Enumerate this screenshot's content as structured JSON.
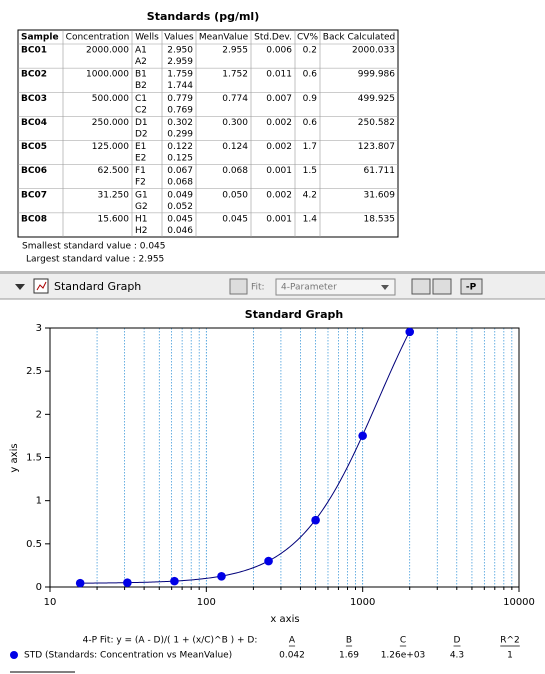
{
  "table": {
    "title": "Standards (pg/ml)",
    "columns": [
      "Sample",
      "Concentration",
      "Wells",
      "Values",
      "MeanValue",
      "Std.Dev.",
      "CV%",
      "Back Calculated"
    ],
    "rows": [
      {
        "sample": "BC01",
        "concentration": "2000.000",
        "wells": [
          "A1",
          "A2"
        ],
        "values": [
          "2.950",
          "2.959"
        ],
        "mean": "2.955",
        "sd": "0.006",
        "cv": "0.2",
        "back": "2000.033"
      },
      {
        "sample": "BC02",
        "concentration": "1000.000",
        "wells": [
          "B1",
          "B2"
        ],
        "values": [
          "1.759",
          "1.744"
        ],
        "mean": "1.752",
        "sd": "0.011",
        "cv": "0.6",
        "back": "999.986"
      },
      {
        "sample": "BC03",
        "concentration": "500.000",
        "wells": [
          "C1",
          "C2"
        ],
        "values": [
          "0.779",
          "0.769"
        ],
        "mean": "0.774",
        "sd": "0.007",
        "cv": "0.9",
        "back": "499.925"
      },
      {
        "sample": "BC04",
        "concentration": "250.000",
        "wells": [
          "D1",
          "D2"
        ],
        "values": [
          "0.302",
          "0.299"
        ],
        "mean": "0.300",
        "sd": "0.002",
        "cv": "0.6",
        "back": "250.582"
      },
      {
        "sample": "BC05",
        "concentration": "125.000",
        "wells": [
          "E1",
          "E2"
        ],
        "values": [
          "0.122",
          "0.125"
        ],
        "mean": "0.124",
        "sd": "0.002",
        "cv": "1.7",
        "back": "123.807"
      },
      {
        "sample": "BC06",
        "concentration": "62.500",
        "wells": [
          "F1",
          "F2"
        ],
        "values": [
          "0.067",
          "0.068"
        ],
        "mean": "0.068",
        "sd": "0.001",
        "cv": "1.5",
        "back": "61.711"
      },
      {
        "sample": "BC07",
        "concentration": "31.250",
        "wells": [
          "G1",
          "G2"
        ],
        "values": [
          "0.049",
          "0.052"
        ],
        "mean": "0.050",
        "sd": "0.002",
        "cv": "4.2",
        "back": "31.609"
      },
      {
        "sample": "BC08",
        "concentration": "15.600",
        "wells": [
          "H1",
          "H2"
        ],
        "values": [
          "0.045",
          "0.046"
        ],
        "mean": "0.045",
        "sd": "0.001",
        "cv": "1.4",
        "back": "18.535"
      }
    ]
  },
  "summary": [
    "Smallest standard value : 0.045",
    "Largest standard value : 2.955"
  ],
  "toolbar": {
    "title": "Standard Graph",
    "fit_label": "Fit:",
    "fit_method": "4-Parameter",
    "button": "-P"
  },
  "chart_data": {
    "type": "scatter",
    "title": "Standard Graph",
    "x_label": "x axis",
    "y_label": "y axis",
    "xscale": "log",
    "xlim": [
      10,
      10000
    ],
    "xticks": [
      10,
      100,
      1000,
      10000
    ],
    "xminorticks": [
      20,
      30,
      40,
      50,
      60,
      70,
      80,
      90,
      200,
      300,
      400,
      500,
      600,
      700,
      800,
      900,
      2000,
      3000,
      4000,
      5000,
      6000,
      7000,
      8000,
      9000
    ],
    "ylim": [
      0,
      3
    ],
    "yticks": [
      0,
      0.5,
      1,
      1.5,
      2,
      2.5,
      3
    ],
    "grid": "x",
    "series": [
      {
        "name": "STD (Standards: Concentration vs MeanValue)",
        "color": "#0000e6",
        "x": [
          2000,
          1000,
          500,
          250,
          125,
          62.5,
          31.25,
          15.6
        ],
        "values": [
          2.955,
          1.752,
          0.774,
          0.3,
          0.124,
          0.068,
          0.05,
          0.045
        ]
      }
    ],
    "fit": {
      "label": "4-P Fit: y = (A - D)/( 1 + (x/C)^B ) + D:",
      "color": "#00007a",
      "names": [
        "A",
        "B",
        "C",
        "D",
        "R^2"
      ],
      "values": [
        0.042,
        1.69,
        1260,
        4.3,
        1
      ],
      "value_labels": [
        "0.042",
        "1.69",
        "1.26e+03",
        "4.3",
        "1"
      ]
    }
  }
}
